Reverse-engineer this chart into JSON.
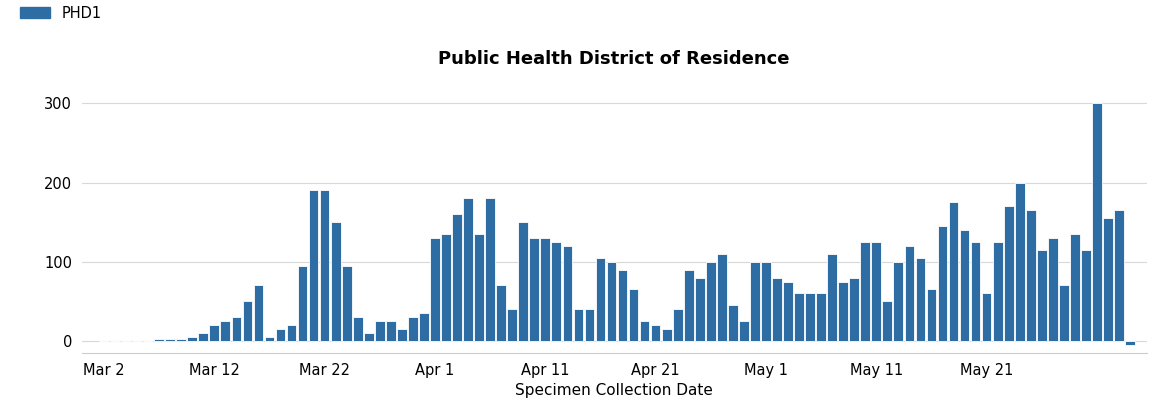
{
  "title": "Public Health District of Residence",
  "xlabel": "Specimen Collection Date",
  "legend_label": "PHD1",
  "bar_color": "#2e6da4",
  "bar_edge_color": "#ffffff",
  "background_color": "#ffffff",
  "grid_color": "#d8d8d8",
  "values": [
    0,
    0,
    0,
    0,
    0,
    2,
    2,
    2,
    5,
    10,
    20,
    25,
    30,
    50,
    70,
    5,
    15,
    20,
    95,
    190,
    190,
    150,
    95,
    30,
    10,
    25,
    25,
    15,
    30,
    35,
    130,
    135,
    160,
    180,
    135,
    180,
    70,
    40,
    150,
    130,
    130,
    125,
    120,
    40,
    40,
    105,
    100,
    90,
    65,
    25,
    20,
    15,
    40,
    90,
    80,
    100,
    110,
    45,
    25,
    100,
    100,
    80,
    75,
    60,
    60,
    60,
    110,
    75,
    80,
    125,
    125,
    50,
    100,
    120,
    105,
    65,
    145,
    175,
    140,
    125,
    60,
    125,
    170,
    200,
    165,
    115,
    130,
    70,
    135,
    115,
    300,
    155,
    165,
    -5
  ],
  "tick_labels": [
    "Mar 2",
    "Mar 12",
    "Mar 22",
    "Apr 1",
    "Apr 11",
    "Apr 21",
    "May 1",
    "May 11",
    "May 21"
  ],
  "tick_positions": [
    0,
    10,
    20,
    30,
    40,
    50,
    60,
    70,
    80
  ],
  "ylim": [
    -15,
    335
  ],
  "yticks": [
    0,
    100,
    200,
    300
  ],
  "title_fontsize": 13,
  "axis_label_fontsize": 11,
  "tick_fontsize": 10.5
}
